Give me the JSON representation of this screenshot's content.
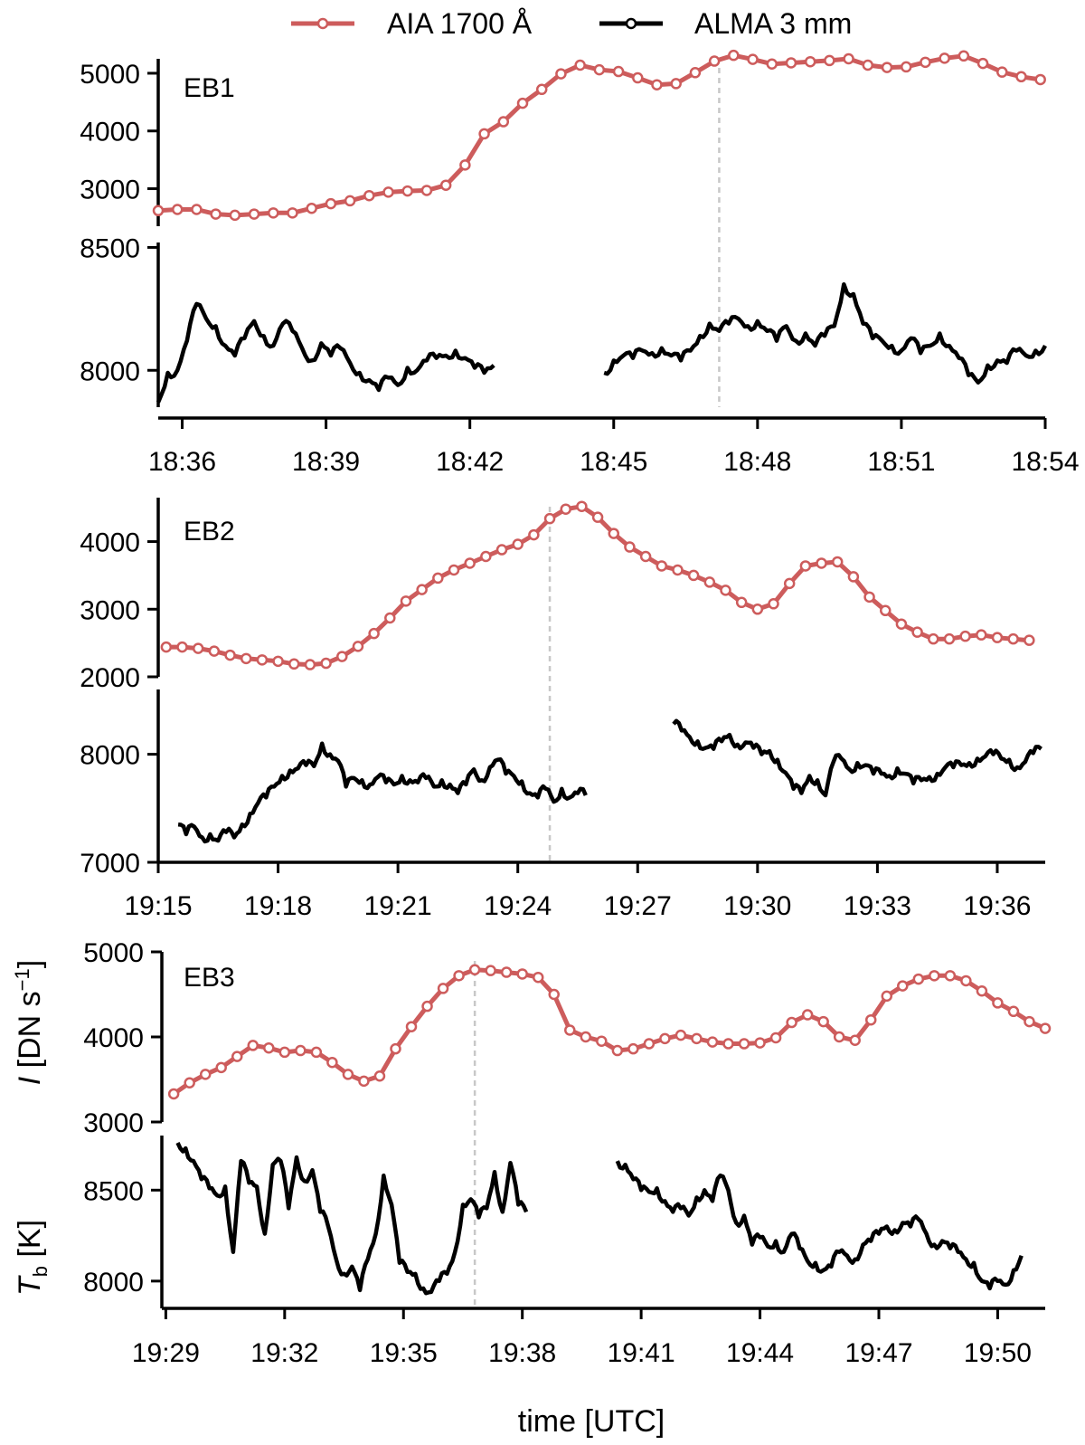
{
  "legend": {
    "aia_label": "AIA 1700 Å",
    "alma_label": "ALMA 3 mm"
  },
  "labels": {
    "xlabel": "time [UTC]",
    "ylabel_top_main": "I",
    "ylabel_top_rest": " [DN s",
    "ylabel_top_sup": "−1",
    "ylabel_top_close": "]",
    "ylabel_bottom_main": "T",
    "ylabel_bottom_sub": "b",
    "ylabel_bottom_rest": " [K]"
  },
  "colors": {
    "aia": "#cd5c5c",
    "alma": "#000000",
    "marker_line": "#c8c8c8"
  },
  "chart_data": [
    {
      "type": "line",
      "panel": "EB1",
      "x_unit": "minutes since 18:00 UTC",
      "xlim": [
        35.5,
        54
      ],
      "xticks": [
        36,
        39,
        42,
        45,
        48,
        51,
        54
      ],
      "xtick_labels": [
        "18:36",
        "18:39",
        "18:42",
        "18:45",
        "18:48",
        "18:51",
        "18:54"
      ],
      "marker_time": 47.2,
      "aia": {
        "ylim": [
          2350,
          5250
        ],
        "yticks": [
          3000,
          4000,
          5000
        ],
        "x": [
          35.5,
          35.9,
          36.3,
          36.7,
          37.1,
          37.5,
          37.9,
          38.3,
          38.7,
          39.1,
          39.5,
          39.9,
          40.3,
          40.7,
          41.1,
          41.5,
          41.9,
          42.3,
          42.7,
          43.1,
          43.5,
          43.9,
          44.3,
          44.7,
          45.1,
          45.5,
          45.9,
          46.3,
          46.7,
          47.1,
          47.5,
          47.9,
          48.3,
          48.7,
          49.1,
          49.5,
          49.9,
          50.3,
          50.7,
          51.1,
          51.5,
          51.9,
          52.3,
          52.7,
          53.1,
          53.5,
          53.9
        ],
        "y": [
          2620,
          2640,
          2640,
          2560,
          2540,
          2560,
          2580,
          2580,
          2660,
          2740,
          2790,
          2880,
          2940,
          2960,
          2970,
          3060,
          3410,
          3950,
          4160,
          4480,
          4720,
          4990,
          5140,
          5060,
          5030,
          4920,
          4800,
          4820,
          5010,
          5210,
          5310,
          5240,
          5160,
          5180,
          5200,
          5220,
          5250,
          5140,
          5100,
          5110,
          5190,
          5260,
          5300,
          5170,
          5020,
          4940,
          4890
        ]
      },
      "alma": {
        "ylim": [
          7850,
          8520
        ],
        "yticks": [
          8000,
          8500
        ],
        "segments": [
          {
            "x": [
              35.5,
              35.7,
              35.9,
              36.1,
              36.3,
              36.5,
              36.7,
              36.9,
              37.1,
              37.3,
              37.5,
              37.7,
              37.9,
              38.1,
              38.3,
              38.5,
              38.7,
              38.9,
              39.1,
              39.3,
              39.5,
              39.7,
              39.9,
              40.1,
              40.3,
              40.5,
              40.7,
              40.9,
              41.1,
              41.3,
              41.5,
              41.7,
              41.9,
              42.1,
              42.3,
              42.5
            ],
            "y": [
              7870,
              7990,
              8000,
              8120,
              8270,
              8210,
              8180,
              8100,
              8060,
              8130,
              8200,
              8140,
              8100,
              8190,
              8160,
              8090,
              8040,
              8110,
              8060,
              8090,
              8030,
              7990,
              7960,
              7920,
              7970,
              7940,
              8010,
              8000,
              8040,
              8050,
              8060,
              8080,
              8050,
              8010,
              7990,
              8020
            ]
          },
          {
            "x": [
              44.8,
              45.0,
              45.2,
              45.4,
              45.6,
              45.8,
              46.0,
              46.2,
              46.4,
              46.6,
              46.8,
              47.0,
              47.2,
              47.4,
              47.6,
              47.8,
              48.0,
              48.2,
              48.4,
              48.6,
              48.8,
              49.0,
              49.2,
              49.4,
              49.6,
              49.8,
              50.0,
              50.2,
              50.4,
              50.6,
              50.8,
              51.0,
              51.2,
              51.4,
              51.6,
              51.8,
              52.0,
              52.2,
              52.4,
              52.6,
              52.8,
              53.0,
              53.2,
              53.4,
              53.6,
              53.8,
              54.0
            ],
            "y": [
              7990,
              8040,
              8060,
              8050,
              8080,
              8070,
              8090,
              8060,
              8040,
              8080,
              8140,
              8190,
              8160,
              8190,
              8210,
              8180,
              8200,
              8160,
              8120,
              8180,
              8120,
              8150,
              8100,
              8140,
              8180,
              8350,
              8310,
              8190,
              8130,
              8120,
              8100,
              8080,
              8130,
              8070,
              8100,
              8150,
              8100,
              8050,
              7980,
              7950,
              8020,
              8040,
              8030,
              8080,
              8060,
              8080,
              8100
            ]
          }
        ]
      }
    },
    {
      "type": "line",
      "panel": "EB2",
      "x_unit": "minutes since 19:00 UTC",
      "xlim": [
        15,
        37.2
      ],
      "xticks": [
        15,
        18,
        21,
        24,
        27,
        30,
        33,
        36
      ],
      "xtick_labels": [
        "19:15",
        "19:18",
        "19:21",
        "19:24",
        "19:27",
        "19:30",
        "19:33",
        "19:36"
      ],
      "marker_time": 24.8,
      "aia": {
        "ylim": [
          2000,
          4650
        ],
        "yticks": [
          2000,
          3000,
          4000
        ],
        "x": [
          15.2,
          15.6,
          16.0,
          16.4,
          16.8,
          17.2,
          17.6,
          18.0,
          18.4,
          18.8,
          19.2,
          19.6,
          20.0,
          20.4,
          20.8,
          21.2,
          21.6,
          22.0,
          22.4,
          22.8,
          23.2,
          23.6,
          24.0,
          24.4,
          24.8,
          25.2,
          25.6,
          26.0,
          26.4,
          26.8,
          27.2,
          27.6,
          28.0,
          28.4,
          28.8,
          29.2,
          29.6,
          30.0,
          30.4,
          30.8,
          31.2,
          31.6,
          32.0,
          32.4,
          32.8,
          33.2,
          33.6,
          34.0,
          34.4,
          34.8,
          35.2,
          35.6,
          36.0,
          36.4,
          36.8
        ],
        "y": [
          2440,
          2440,
          2420,
          2380,
          2320,
          2270,
          2250,
          2230,
          2190,
          2180,
          2200,
          2300,
          2450,
          2640,
          2870,
          3120,
          3290,
          3460,
          3580,
          3680,
          3780,
          3880,
          3960,
          4100,
          4340,
          4480,
          4520,
          4360,
          4120,
          3920,
          3780,
          3640,
          3580,
          3500,
          3400,
          3280,
          3100,
          3000,
          3080,
          3380,
          3640,
          3680,
          3700,
          3480,
          3180,
          2980,
          2780,
          2660,
          2560,
          2560,
          2600,
          2620,
          2580,
          2560,
          2540
        ]
      },
      "alma": {
        "ylim": [
          7000,
          8600
        ],
        "yticks": [
          7000,
          8000
        ],
        "segments": [
          {
            "x": [
              15.5,
              15.7,
              15.9,
              16.1,
              16.3,
              16.5,
              16.7,
              16.9,
              17.1,
              17.3,
              17.5,
              17.7,
              17.9,
              18.1,
              18.3,
              18.5,
              18.7,
              18.9,
              19.1,
              19.3,
              19.5,
              19.7,
              19.9,
              20.1,
              20.3,
              20.5,
              20.7,
              20.9,
              21.1,
              21.3,
              21.5,
              21.7,
              21.9,
              22.1,
              22.3,
              22.5,
              22.7,
              22.9,
              23.1,
              23.3,
              23.5,
              23.7,
              23.9,
              24.1,
              24.3,
              24.5,
              24.7,
              24.9,
              25.1,
              25.3,
              25.5,
              25.7
            ],
            "y": [
              7350,
              7260,
              7330,
              7230,
              7260,
              7200,
              7280,
              7230,
              7350,
              7450,
              7550,
              7600,
              7700,
              7800,
              7850,
              7870,
              7900,
              7890,
              8100,
              8000,
              7940,
              7700,
              7780,
              7760,
              7720,
              7790,
              7740,
              7720,
              7800,
              7760,
              7740,
              7780,
              7700,
              7760,
              7720,
              7640,
              7720,
              7860,
              7760,
              7880,
              7950,
              7820,
              7800,
              7750,
              7640,
              7600,
              7680,
              7560,
              7680,
              7600,
              7640,
              7620
            ]
          },
          {
            "x": [
              27.9,
              28.1,
              28.3,
              28.5,
              28.7,
              28.9,
              29.1,
              29.3,
              29.5,
              29.7,
              29.9,
              30.1,
              30.3,
              30.5,
              30.7,
              30.9,
              31.1,
              31.3,
              31.5,
              31.7,
              31.9,
              32.1,
              32.3,
              32.5,
              32.7,
              32.9,
              33.1,
              33.3,
              33.5,
              33.7,
              33.9,
              34.1,
              34.3,
              34.5,
              34.7,
              34.9,
              35.1,
              35.3,
              35.5,
              35.7,
              35.9,
              36.1,
              36.3,
              36.5,
              36.7,
              36.9,
              37.1
            ],
            "y": [
              8280,
              8220,
              8160,
              8120,
              8060,
              8050,
              8120,
              8180,
              8090,
              8110,
              8060,
              8000,
              8030,
              7950,
              7830,
              7680,
              7640,
              7800,
              7760,
              7620,
              7930,
              7960,
              7860,
              7920,
              7900,
              7820,
              7820,
              7800,
              7870,
              7820,
              7730,
              7760,
              7790,
              7820,
              7880,
              7880,
              7900,
              7920,
              7960,
              7980,
              8000,
              7960,
              7950,
              7880,
              7930,
              8010,
              8050
            ]
          }
        ]
      }
    },
    {
      "type": "line",
      "panel": "EB3",
      "x_unit": "minutes since 19:00 UTC",
      "xlim": [
        28.9,
        51.2
      ],
      "xticks": [
        29,
        32,
        35,
        38,
        41,
        44,
        47,
        50
      ],
      "xtick_labels": [
        "19:29",
        "19:32",
        "19:35",
        "19:38",
        "19:41",
        "19:44",
        "19:47",
        "19:50"
      ],
      "marker_time": 36.8,
      "aia": {
        "ylim": [
          3000,
          5000
        ],
        "yticks": [
          3000,
          4000,
          5000
        ],
        "x": [
          29.2,
          29.6,
          30.0,
          30.4,
          30.8,
          31.2,
          31.6,
          32.0,
          32.4,
          32.8,
          33.2,
          33.6,
          34.0,
          34.4,
          34.8,
          35.2,
          35.6,
          36.0,
          36.4,
          36.8,
          37.2,
          37.6,
          38.0,
          38.4,
          38.8,
          39.2,
          39.6,
          40.0,
          40.4,
          40.8,
          41.2,
          41.6,
          42.0,
          42.4,
          42.8,
          43.2,
          43.6,
          44.0,
          44.4,
          44.8,
          45.2,
          45.6,
          46.0,
          46.4,
          46.8,
          47.2,
          47.6,
          48.0,
          48.4,
          48.8,
          49.2,
          49.6,
          50.0,
          50.4,
          50.8,
          51.2
        ],
        "y": [
          3330,
          3460,
          3560,
          3640,
          3770,
          3900,
          3870,
          3820,
          3840,
          3820,
          3700,
          3560,
          3480,
          3540,
          3860,
          4120,
          4360,
          4570,
          4720,
          4790,
          4780,
          4760,
          4740,
          4700,
          4500,
          4080,
          4000,
          3950,
          3840,
          3860,
          3920,
          3980,
          4020,
          3980,
          3940,
          3920,
          3920,
          3930,
          3990,
          4170,
          4260,
          4180,
          4000,
          3960,
          4200,
          4480,
          4600,
          4680,
          4720,
          4720,
          4660,
          4540,
          4400,
          4300,
          4180,
          4100
        ]
      },
      "alma": {
        "ylim": [
          7850,
          8800
        ],
        "yticks": [
          8000,
          8500
        ],
        "segments": [
          {
            "x": [
              29.3,
              29.5,
              29.7,
              29.9,
              30.1,
              30.3,
              30.5,
              30.7,
              30.9,
              31.1,
              31.3,
              31.5,
              31.7,
              31.9,
              32.1,
              32.3,
              32.5,
              32.7,
              32.9,
              33.1,
              33.3,
              33.5,
              33.7,
              33.9,
              34.1,
              34.3,
              34.5,
              34.7,
              34.9,
              35.1,
              35.3,
              35.5,
              35.7,
              35.9,
              36.1,
              36.3,
              36.5,
              36.7,
              36.9,
              37.1,
              37.3,
              37.5,
              37.7,
              37.9,
              38.1
            ],
            "y": [
              8760,
              8730,
              8660,
              8560,
              8510,
              8470,
              8520,
              8160,
              8660,
              8540,
              8520,
              8260,
              8640,
              8660,
              8400,
              8680,
              8550,
              8610,
              8380,
              8300,
              8120,
              8040,
              8080,
              7950,
              8120,
              8260,
              8580,
              8420,
              8100,
              8050,
              8040,
              7960,
              7940,
              8000,
              8040,
              8160,
              8420,
              8450,
              8350,
              8400,
              8600,
              8380,
              8650,
              8420,
              8380
            ]
          },
          {
            "x": [
              40.4,
              40.6,
              40.8,
              41.0,
              41.2,
              41.4,
              41.6,
              41.8,
              42.0,
              42.2,
              42.4,
              42.6,
              42.8,
              43.0,
              43.2,
              43.4,
              43.6,
              43.8,
              44.0,
              44.2,
              44.4,
              44.6,
              44.8,
              45.0,
              45.2,
              45.4,
              45.6,
              45.8,
              46.0,
              46.2,
              46.4,
              46.6,
              46.8,
              47.0,
              47.2,
              47.4,
              47.6,
              47.8,
              48.0,
              48.2,
              48.4,
              48.6,
              48.8,
              49.0,
              49.2,
              49.4,
              49.6,
              49.8,
              50.0,
              50.2,
              50.4,
              50.6
            ],
            "y": [
              8660,
              8640,
              8560,
              8500,
              8490,
              8510,
              8440,
              8380,
              8400,
              8360,
              8460,
              8500,
              8440,
              8580,
              8500,
              8320,
              8360,
              8200,
              8240,
              8190,
              8220,
              8160,
              8260,
              8180,
              8110,
              8100,
              8060,
              8080,
              8160,
              8140,
              8120,
              8200,
              8220,
              8260,
              8300,
              8280,
              8320,
              8300,
              8340,
              8260,
              8200,
              8220,
              8180,
              8160,
              8120,
              8100,
              8000,
              7960,
              8000,
              7980,
              8060,
              8140
            ]
          }
        ]
      }
    }
  ]
}
